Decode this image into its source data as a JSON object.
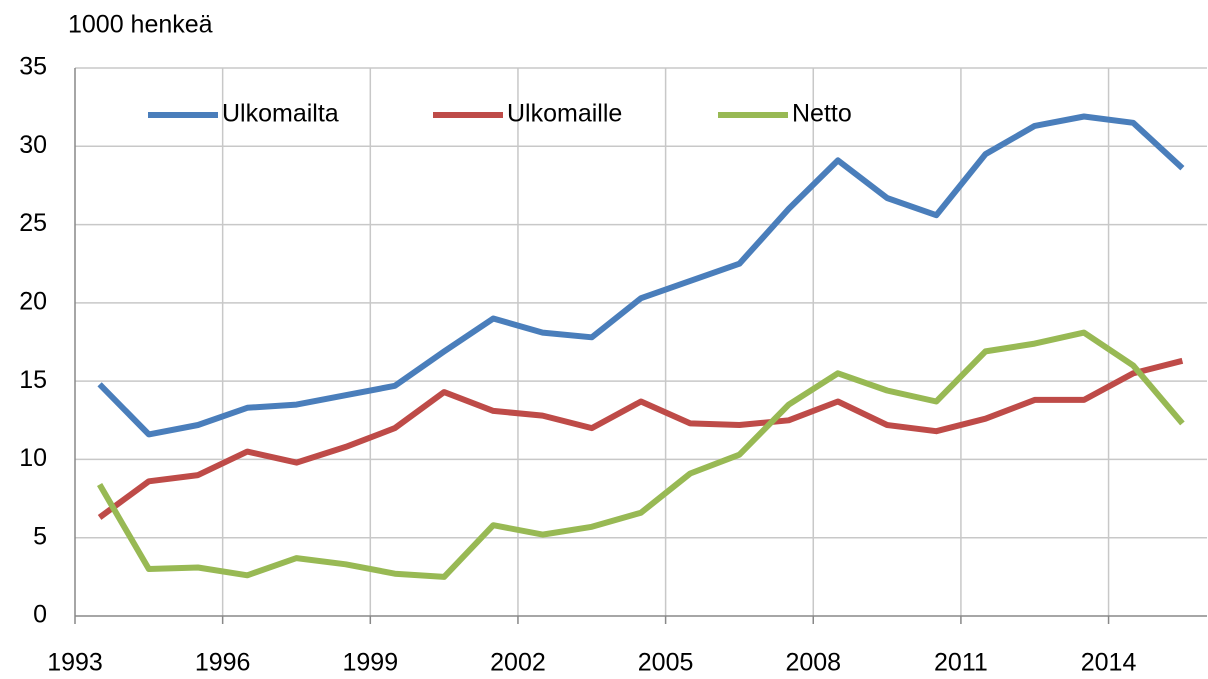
{
  "chart_data": {
    "type": "line",
    "ylabel": "1000 henkeä",
    "categories": [
      "1993",
      null,
      null,
      "1996",
      null,
      null,
      "1999",
      null,
      null,
      "2002",
      null,
      null,
      "2005",
      null,
      null,
      "2008",
      null,
      null,
      "2011",
      null,
      null,
      "2014",
      null
    ],
    "series": [
      {
        "name": "Ulkomailta",
        "color": "#4a7ebb",
        "values": [
          14.8,
          11.6,
          12.2,
          13.3,
          13.5,
          14.1,
          14.7,
          16.9,
          19.0,
          18.1,
          17.8,
          20.3,
          21.4,
          22.5,
          26.0,
          29.1,
          26.7,
          25.6,
          29.5,
          31.3,
          31.9,
          31.5,
          28.6
        ]
      },
      {
        "name": "Ulkomaille",
        "color": "#be4b48",
        "values": [
          6.3,
          8.6,
          9.0,
          10.5,
          9.8,
          10.8,
          12.0,
          14.3,
          13.1,
          12.8,
          12.0,
          13.7,
          12.3,
          12.2,
          12.5,
          13.7,
          12.2,
          11.8,
          12.6,
          13.8,
          13.8,
          15.5,
          16.3
        ]
      },
      {
        "name": "Netto",
        "color": "#98b954",
        "values": [
          8.4,
          3.0,
          3.1,
          2.6,
          3.7,
          3.3,
          2.7,
          2.5,
          5.8,
          5.2,
          5.7,
          6.6,
          9.1,
          10.3,
          13.5,
          15.5,
          14.4,
          13.7,
          16.9,
          17.4,
          18.1,
          16.0,
          12.3
        ]
      }
    ],
    "ylim": [
      0,
      35
    ],
    "yticks": [
      0,
      5,
      10,
      15,
      20,
      25,
      30,
      35
    ],
    "grid": true,
    "legend": "top"
  }
}
